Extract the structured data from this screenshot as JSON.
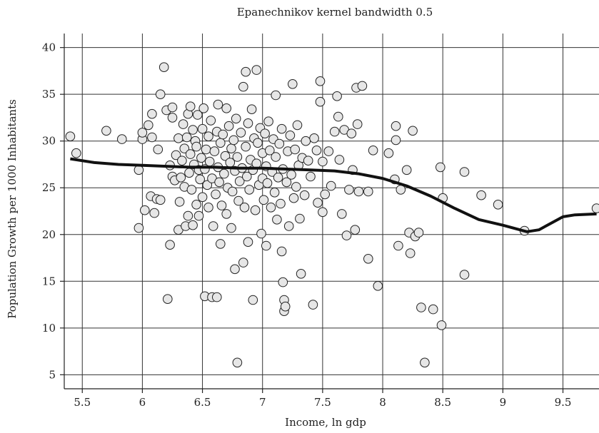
{
  "chart_data": {
    "type": "scatter",
    "title": "Epanechnikov kernel bandwidth 0.5",
    "xlabel": "Income, ln gdp",
    "ylabel": "Population Growth per 1000 Inhabitants",
    "xlim": [
      5.35,
      9.8
    ],
    "ylim": [
      3.5,
      41.5
    ],
    "xticks": [
      5.5,
      6,
      6.5,
      7,
      7.5,
      8,
      8.5,
      9,
      9.5
    ],
    "yticks": [
      5,
      10,
      15,
      20,
      25,
      30,
      35,
      40
    ],
    "grid": true,
    "colors": {
      "point_fill": "#e6e6e6",
      "point_stroke": "#222222",
      "line": "#111111"
    },
    "smooth_line": {
      "name": "",
      "x": [
        5.4,
        5.6,
        5.8,
        6.0,
        6.2,
        6.4,
        6.6,
        6.8,
        7.0,
        7.2,
        7.4,
        7.6,
        7.8,
        8.0,
        8.2,
        8.4,
        8.6,
        8.8,
        9.0,
        9.2,
        9.3,
        9.4,
        9.5,
        9.6,
        9.78
      ],
      "y": [
        28.1,
        27.7,
        27.5,
        27.4,
        27.3,
        27.2,
        27.2,
        27.1,
        27.1,
        27.0,
        26.9,
        26.8,
        26.5,
        26.0,
        25.2,
        24.1,
        22.8,
        21.6,
        21.0,
        20.3,
        20.5,
        21.2,
        21.9,
        22.1,
        22.2
      ]
    },
    "points": [
      [
        5.4,
        30.5
      ],
      [
        5.45,
        28.7
      ],
      [
        5.7,
        31.1
      ],
      [
        5.83,
        30.2
      ],
      [
        5.97,
        26.9
      ],
      [
        5.97,
        20.7
      ],
      [
        6.0,
        30.2
      ],
      [
        6.0,
        30.9
      ],
      [
        6.02,
        22.6
      ],
      [
        6.05,
        31.7
      ],
      [
        6.07,
        24.1
      ],
      [
        6.08,
        32.9
      ],
      [
        6.08,
        30.4
      ],
      [
        6.1,
        22.3
      ],
      [
        6.12,
        23.8
      ],
      [
        6.13,
        29.1
      ],
      [
        6.15,
        23.7
      ],
      [
        6.15,
        35.0
      ],
      [
        6.18,
        37.9
      ],
      [
        6.2,
        33.3
      ],
      [
        6.21,
        13.1
      ],
      [
        6.23,
        27.4
      ],
      [
        6.23,
        18.9
      ],
      [
        6.25,
        26.2
      ],
      [
        6.25,
        32.5
      ],
      [
        6.25,
        33.6
      ],
      [
        6.27,
        25.8
      ],
      [
        6.28,
        28.5
      ],
      [
        6.3,
        30.3
      ],
      [
        6.3,
        20.5
      ],
      [
        6.31,
        23.5
      ],
      [
        6.32,
        26.1
      ],
      [
        6.33,
        27.9
      ],
      [
        6.34,
        31.8
      ],
      [
        6.35,
        29.2
      ],
      [
        6.35,
        25.1
      ],
      [
        6.36,
        20.9
      ],
      [
        6.37,
        30.4
      ],
      [
        6.38,
        22.0
      ],
      [
        6.38,
        32.9
      ],
      [
        6.39,
        26.6
      ],
      [
        6.4,
        33.7
      ],
      [
        6.4,
        28.6
      ],
      [
        6.41,
        24.8
      ],
      [
        6.42,
        21.0
      ],
      [
        6.42,
        31.2
      ],
      [
        6.43,
        27.5
      ],
      [
        6.44,
        30.0
      ],
      [
        6.45,
        23.2
      ],
      [
        6.45,
        29.4
      ],
      [
        6.46,
        32.8
      ],
      [
        6.47,
        26.9
      ],
      [
        6.47,
        22.0
      ],
      [
        6.48,
        25.9
      ],
      [
        6.49,
        28.2
      ],
      [
        6.5,
        31.3
      ],
      [
        6.5,
        24.0
      ],
      [
        6.51,
        33.5
      ],
      [
        6.52,
        27.0
      ],
      [
        6.52,
        13.4
      ],
      [
        6.53,
        29.1
      ],
      [
        6.54,
        25.3
      ],
      [
        6.55,
        30.5
      ],
      [
        6.55,
        22.9
      ],
      [
        6.56,
        27.8
      ],
      [
        6.57,
        32.2
      ],
      [
        6.58,
        13.3
      ],
      [
        6.58,
        26.0
      ],
      [
        6.59,
        20.9
      ],
      [
        6.6,
        28.9
      ],
      [
        6.61,
        24.3
      ],
      [
        6.62,
        31.0
      ],
      [
        6.62,
        13.3
      ],
      [
        6.63,
        27.2
      ],
      [
        6.63,
        33.9
      ],
      [
        6.64,
        25.6
      ],
      [
        6.65,
        19.0
      ],
      [
        6.65,
        29.8
      ],
      [
        6.66,
        23.1
      ],
      [
        6.67,
        30.7
      ],
      [
        6.68,
        26.5
      ],
      [
        6.69,
        28.4
      ],
      [
        6.7,
        33.5
      ],
      [
        6.7,
        22.2
      ],
      [
        6.71,
        25.0
      ],
      [
        6.72,
        31.6
      ],
      [
        6.73,
        27.7
      ],
      [
        6.74,
        29.2
      ],
      [
        6.74,
        20.7
      ],
      [
        6.75,
        24.6
      ],
      [
        6.76,
        30.1
      ],
      [
        6.77,
        16.3
      ],
      [
        6.77,
        26.8
      ],
      [
        6.78,
        32.4
      ],
      [
        6.79,
        6.3
      ],
      [
        6.79,
        28.3
      ],
      [
        6.8,
        23.6
      ],
      [
        6.81,
        25.7
      ],
      [
        6.82,
        30.9
      ],
      [
        6.83,
        27.1
      ],
      [
        6.84,
        35.8
      ],
      [
        6.84,
        17.0
      ],
      [
        6.85,
        22.9
      ],
      [
        6.86,
        29.4
      ],
      [
        6.86,
        37.4
      ],
      [
        6.87,
        26.2
      ],
      [
        6.88,
        31.9
      ],
      [
        6.88,
        19.2
      ],
      [
        6.89,
        24.8
      ],
      [
        6.9,
        28.0
      ],
      [
        6.91,
        33.4
      ],
      [
        6.92,
        26.9
      ],
      [
        6.92,
        13.0
      ],
      [
        6.93,
        30.3
      ],
      [
        6.94,
        22.6
      ],
      [
        6.95,
        27.6
      ],
      [
        6.95,
        37.6
      ],
      [
        6.96,
        29.8
      ],
      [
        6.97,
        25.3
      ],
      [
        6.98,
        31.4
      ],
      [
        6.99,
        20.1
      ],
      [
        7.0,
        28.7
      ],
      [
        7.0,
        26.0
      ],
      [
        7.01,
        23.7
      ],
      [
        7.02,
        30.8
      ],
      [
        7.03,
        27.3
      ],
      [
        7.03,
        18.8
      ],
      [
        7.04,
        25.5
      ],
      [
        7.05,
        32.1
      ],
      [
        7.06,
        29.0
      ],
      [
        7.07,
        22.9
      ],
      [
        7.08,
        26.7
      ],
      [
        7.09,
        30.2
      ],
      [
        7.1,
        24.5
      ],
      [
        7.11,
        34.9
      ],
      [
        7.11,
        28.3
      ],
      [
        7.12,
        21.6
      ],
      [
        7.13,
        26.1
      ],
      [
        7.14,
        29.7
      ],
      [
        7.15,
        23.3
      ],
      [
        7.16,
        18.2
      ],
      [
        7.16,
        31.3
      ],
      [
        7.17,
        14.9
      ],
      [
        7.17,
        27.0
      ],
      [
        7.18,
        13.0
      ],
      [
        7.18,
        11.8
      ],
      [
        7.19,
        12.3
      ],
      [
        7.2,
        25.6
      ],
      [
        7.21,
        28.9
      ],
      [
        7.22,
        20.9
      ],
      [
        7.23,
        30.6
      ],
      [
        7.24,
        26.4
      ],
      [
        7.25,
        36.1
      ],
      [
        7.26,
        23.9
      ],
      [
        7.27,
        29.1
      ],
      [
        7.28,
        25.1
      ],
      [
        7.29,
        31.7
      ],
      [
        7.3,
        27.4
      ],
      [
        7.31,
        21.7
      ],
      [
        7.32,
        15.8
      ],
      [
        7.33,
        28.2
      ],
      [
        7.35,
        24.2
      ],
      [
        7.36,
        30.0
      ],
      [
        7.38,
        27.9
      ],
      [
        7.4,
        26.2
      ],
      [
        7.42,
        12.5
      ],
      [
        7.43,
        30.3
      ],
      [
        7.45,
        29.0
      ],
      [
        7.46,
        23.4
      ],
      [
        7.48,
        36.4
      ],
      [
        7.48,
        34.2
      ],
      [
        7.5,
        27.8
      ],
      [
        7.5,
        22.4
      ],
      [
        7.52,
        24.3
      ],
      [
        7.55,
        28.9
      ],
      [
        7.57,
        25.2
      ],
      [
        7.6,
        31.0
      ],
      [
        7.62,
        34.8
      ],
      [
        7.63,
        32.6
      ],
      [
        7.64,
        28.0
      ],
      [
        7.66,
        22.2
      ],
      [
        7.68,
        31.2
      ],
      [
        7.7,
        19.9
      ],
      [
        7.72,
        24.8
      ],
      [
        7.74,
        30.8
      ],
      [
        7.75,
        26.9
      ],
      [
        7.77,
        20.5
      ],
      [
        7.78,
        35.7
      ],
      [
        7.79,
        31.8
      ],
      [
        7.8,
        24.6
      ],
      [
        7.83,
        35.9
      ],
      [
        7.88,
        24.6
      ],
      [
        7.88,
        17.4
      ],
      [
        7.92,
        29.0
      ],
      [
        7.96,
        14.5
      ],
      [
        8.05,
        28.7
      ],
      [
        8.1,
        25.9
      ],
      [
        8.11,
        30.1
      ],
      [
        8.11,
        31.6
      ],
      [
        8.13,
        18.8
      ],
      [
        8.15,
        24.8
      ],
      [
        8.2,
        26.9
      ],
      [
        8.22,
        20.2
      ],
      [
        8.23,
        18.0
      ],
      [
        8.25,
        31.1
      ],
      [
        8.27,
        19.8
      ],
      [
        8.3,
        20.2
      ],
      [
        8.32,
        12.2
      ],
      [
        8.35,
        6.3
      ],
      [
        8.42,
        12.0
      ],
      [
        8.48,
        27.2
      ],
      [
        8.49,
        10.3
      ],
      [
        8.5,
        23.9
      ],
      [
        8.68,
        15.7
      ],
      [
        8.68,
        26.7
      ],
      [
        8.82,
        24.2
      ],
      [
        8.96,
        23.2
      ],
      [
        9.18,
        20.4
      ],
      [
        9.78,
        22.8
      ]
    ]
  }
}
